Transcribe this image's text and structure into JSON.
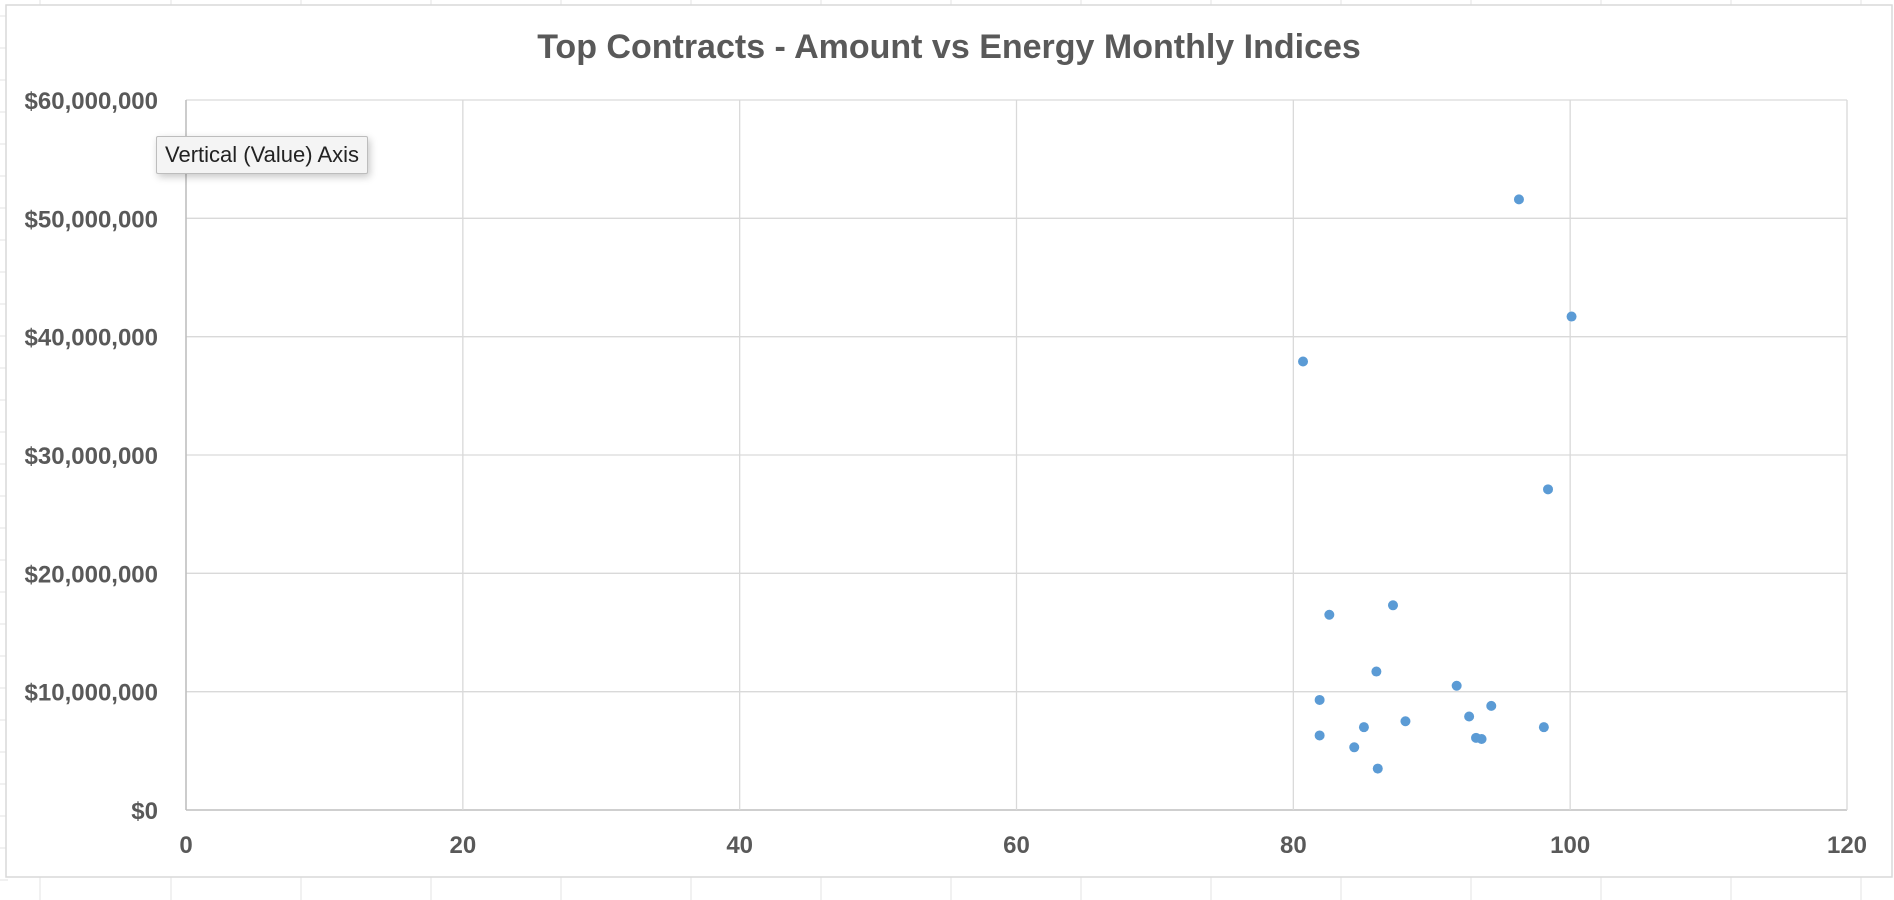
{
  "chart_data": {
    "type": "scatter",
    "title": "Top Contracts - Amount vs Energy Monthly Indices",
    "xlabel": "",
    "ylabel": "",
    "xlim": [
      0,
      120
    ],
    "ylim": [
      0,
      60000000
    ],
    "x_ticks": [
      0,
      20,
      40,
      60,
      80,
      100,
      120
    ],
    "x_tick_labels": [
      "0",
      "20",
      "40",
      "60",
      "80",
      "100",
      "120"
    ],
    "y_ticks": [
      0,
      10000000,
      20000000,
      30000000,
      40000000,
      50000000,
      60000000
    ],
    "y_tick_labels": [
      "$0",
      "$10,000,000",
      "$20,000,000",
      "$30,000,000",
      "$40,000,000",
      "$50,000,000",
      "$60,000,000"
    ],
    "grid": true,
    "legend": "none",
    "series": [
      {
        "color": "#5b9bd5",
        "points": [
          {
            "x": 96.3,
            "y": 51600000
          },
          {
            "x": 100.1,
            "y": 41700000
          },
          {
            "x": 80.7,
            "y": 37900000
          },
          {
            "x": 98.4,
            "y": 27100000
          },
          {
            "x": 87.2,
            "y": 17300000
          },
          {
            "x": 82.6,
            "y": 16500000
          },
          {
            "x": 86.0,
            "y": 11700000
          },
          {
            "x": 91.8,
            "y": 10500000
          },
          {
            "x": 81.9,
            "y": 9300000
          },
          {
            "x": 94.3,
            "y": 8800000
          },
          {
            "x": 92.7,
            "y": 7900000
          },
          {
            "x": 88.1,
            "y": 7500000
          },
          {
            "x": 85.1,
            "y": 7000000
          },
          {
            "x": 98.1,
            "y": 7000000
          },
          {
            "x": 81.9,
            "y": 6300000
          },
          {
            "x": 93.2,
            "y": 6100000
          },
          {
            "x": 93.6,
            "y": 6000000
          },
          {
            "x": 84.4,
            "y": 5300000
          },
          {
            "x": 86.1,
            "y": 3500000
          }
        ]
      }
    ]
  },
  "tooltip": {
    "text": "Vertical (Value) Axis"
  },
  "colors": {
    "marker": "#5b9bd5",
    "gridline": "#d9d9d9",
    "axis_line": "#bfbfbf",
    "text": "#595959",
    "sheet_grid": "#e3e3e3",
    "chart_border": "#d9d9d9"
  }
}
